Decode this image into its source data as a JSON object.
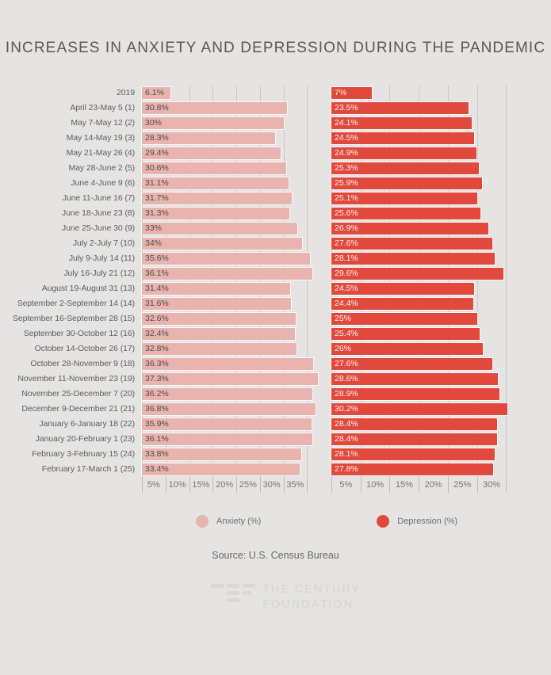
{
  "title": "INCREASES IN ANXIETY AND DEPRESSION DURING THE PANDEMIC",
  "source": "Source: U.S. Census Bureau",
  "logo": {
    "line1": "THE CENTURY",
    "line2": "FOUNDATION"
  },
  "legend": [
    {
      "label": "Anxiety (%)",
      "color": "#e9b3ae"
    },
    {
      "label": "Depression (%)",
      "color": "#e0493c"
    }
  ],
  "colors": {
    "background": "#e5e4e2",
    "anxiety_bar": "#e9b3ae",
    "depression_bar": "#e0493c",
    "gridline": "#c9c8c6",
    "title_text": "#57575a",
    "row_label_text": "#5d5d5d",
    "axis_text": "#757575",
    "logo_watermark": "#d9d8d6"
  },
  "chart_data": {
    "type": "bar",
    "orientation": "horizontal",
    "title": "INCREASES IN ANXIETY AND DEPRESSION DURING THE PANDEMIC",
    "grid": true,
    "legend_position": "bottom",
    "categories": [
      "2019",
      "April 23-May 5 (1)",
      "May 7-May 12 (2)",
      "May 14-May 19 (3)",
      "May 21-May 26 (4)",
      "May 28-June 2 (5)",
      "June 4-June 9 (6)",
      "June 11-June 16 (7)",
      "June 18-June 23 (8)",
      "June 25-June 30 (9)",
      "July 2-July 7 (10)",
      "July 9-July 14 (11)",
      "July 16-July 21 (12)",
      "August 19-August 31 (13)",
      "September 2-September 14 (14)",
      "September 16-September 28 (15)",
      "September 30-October 12 (16)",
      "October 14-October 26 (17)",
      "October 28-November 9 (18)",
      "November 11-November 23 (19)",
      "November 25-December 7 (20)",
      "December 9-December 21 (21)",
      "January 6-January 18 (22)",
      "January 20-February 1 (23)",
      "February 3-February 15 (24)",
      "February 17-March 1 (25)"
    ],
    "series": [
      {
        "key": "anxiety",
        "name": "Anxiety (%)",
        "color": "#e9b3ae",
        "value_label_color": "#4c4c4c",
        "axis_max": 37.8,
        "tick_step": 5,
        "ticks": [
          5,
          10,
          15,
          20,
          25,
          30,
          35
        ],
        "tick_labels": [
          "5%",
          "10%",
          "15%",
          "20%",
          "25%",
          "30%",
          "35%"
        ],
        "values": [
          6.1,
          30.8,
          30,
          28.3,
          29.4,
          30.6,
          31.1,
          31.7,
          31.3,
          33,
          34,
          35.6,
          36.1,
          31.4,
          31.6,
          32.6,
          32.4,
          32.8,
          36.3,
          37.3,
          36.2,
          36.8,
          35.9,
          36.1,
          33.8,
          33.4
        ],
        "value_labels": [
          "6.1%",
          "30.8%",
          "30%",
          "28.3%",
          "29.4%",
          "30.6%",
          "31.1%",
          "31.7%",
          "31.3%",
          "33%",
          "34%",
          "35.6%",
          "36.1%",
          "31.4%",
          "31.6%",
          "32.6%",
          "32.4%",
          "32.8%",
          "36.3%",
          "37.3%",
          "36.2%",
          "36.8%",
          "35.9%",
          "36.1%",
          "33.8%",
          "33.4%"
        ]
      },
      {
        "key": "depression",
        "name": "Depression (%)",
        "color": "#e0493c",
        "value_label_color": "#fcf1ef",
        "axis_max": 32.8,
        "tick_step": 5,
        "ticks": [
          5,
          10,
          15,
          20,
          25,
          30
        ],
        "tick_labels": [
          "5%",
          "10%",
          "15%",
          "20%",
          "25%",
          "30%"
        ],
        "values": [
          7,
          23.5,
          24.1,
          24.5,
          24.9,
          25.3,
          25.9,
          25.1,
          25.6,
          26.9,
          27.6,
          28.1,
          29.6,
          24.5,
          24.4,
          25,
          25.4,
          26,
          27.6,
          28.6,
          28.9,
          30.2,
          28.4,
          28.4,
          28.1,
          27.8
        ],
        "value_labels": [
          "7%",
          "23.5%",
          "24.1%",
          "24.5%",
          "24.9%",
          "25.3%",
          "25.9%",
          "25.1%",
          "25.6%",
          "26.9%",
          "27.6%",
          "28.1%",
          "29.6%",
          "24.5%",
          "24.4%",
          "25%",
          "25.4%",
          "26%",
          "27.6%",
          "28.6%",
          "28.9%",
          "30.2%",
          "28.4%",
          "28.4%",
          "28.1%",
          "27.8%"
        ]
      }
    ]
  }
}
